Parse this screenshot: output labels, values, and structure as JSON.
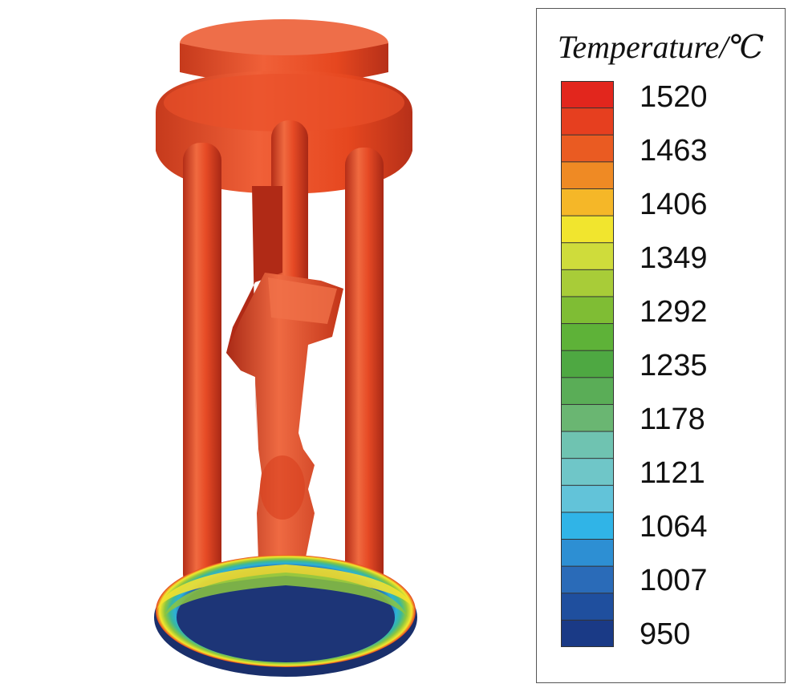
{
  "legend": {
    "title": "Temperature/℃",
    "levels": [
      "1520",
      "1463",
      "1406",
      "1349",
      "1292",
      "1235",
      "1178",
      "1121",
      "1064",
      "1007",
      "950"
    ],
    "colorbar_colors": [
      "#e2261d",
      "#e63f1f",
      "#ea5b22",
      "#ef8a24",
      "#f5b728",
      "#f1e52e",
      "#cfdc3b",
      "#a8cc38",
      "#7fbd34",
      "#5eb238",
      "#4ea842",
      "#5aad57",
      "#6ab672",
      "#6fc3b1",
      "#6fc6c8",
      "#62c3d9",
      "#30b4e7",
      "#2d8fd3",
      "#2a6bb8",
      "#1f4f9e",
      "#1a3a86"
    ],
    "levels_per_label_span": 2
  },
  "casting": {
    "body_color": "#e84a24",
    "shadow_color": "#b82e18",
    "highlight_color": "#f27a55",
    "plate_colors": [
      "#e53d20",
      "#f5e72c",
      "#8cc63f",
      "#3bb89a",
      "#2db0d8",
      "#2466b0",
      "#1f3f8a",
      "#1b2f70"
    ]
  }
}
